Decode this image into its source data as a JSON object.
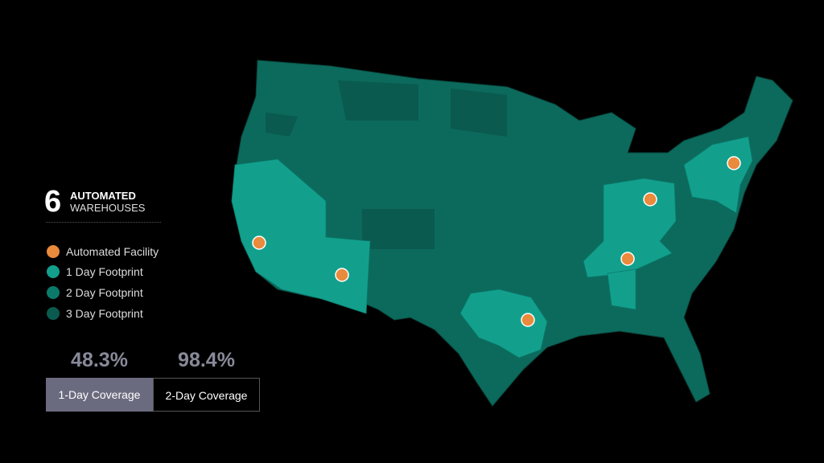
{
  "headline": {
    "count": "6",
    "line1": "AUTOMATED",
    "line2": "WAREHOUSES"
  },
  "legend": [
    "Automated Facility",
    "1 Day Footprint",
    "2 Day Footprint",
    "3 Day Footprint"
  ],
  "coverage": [
    {
      "value": "48.3%",
      "label": "1-Day Coverage"
    },
    {
      "value": "98.4%",
      "label": "2-Day Coverage"
    }
  ]
}
